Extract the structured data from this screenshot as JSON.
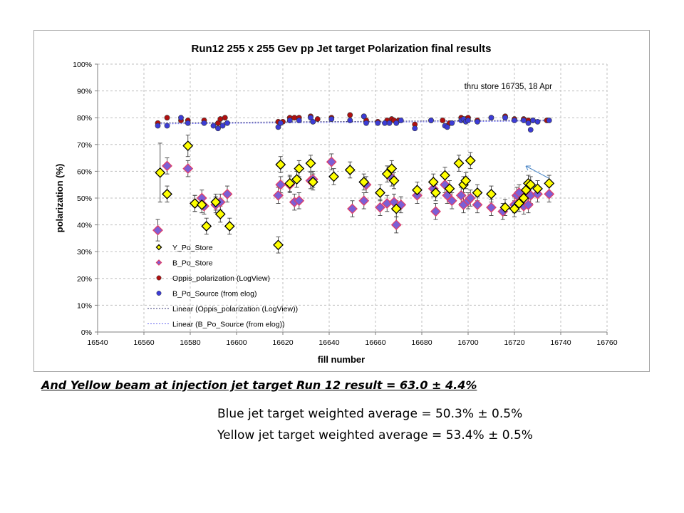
{
  "colors": {
    "yellow_marker": "#ffff00",
    "blue_marker": "#7b5fd6",
    "blue_marker_edge": "#e0406a",
    "oppis_marker": "#b01010",
    "source_marker": "#3c3cd6",
    "gridline": "#bfbfbf",
    "oppis_trend": "#3a3a7a",
    "source_trend": "#6a6af0",
    "annotation_arrow": "#4a86c6"
  },
  "chart_data": {
    "type": "scatter",
    "title": "Run12 255 x 255 Gev pp Jet target Polarization final results",
    "xlabel": "fill number",
    "ylabel": "polarization (%)",
    "xlim": [
      16540,
      16760
    ],
    "ylim": [
      0,
      100
    ],
    "x_ticks": [
      "16540",
      "16560",
      "16580",
      "16600",
      "16620",
      "16640",
      "16660",
      "16680",
      "16700",
      "16720",
      "16740",
      "16760"
    ],
    "y_ticks": [
      "0%",
      "10%",
      "20%",
      "30%",
      "40%",
      "50%",
      "60%",
      "70%",
      "80%",
      "90%",
      "100%"
    ],
    "grid": true,
    "annotation": "thru store 16735, 18 Apr",
    "legend_position": "bottom-left inside plot",
    "series": [
      {
        "name": "Y_Po_Store",
        "marker": "diamond",
        "points": [
          [
            16567,
            59.5,
            11
          ],
          [
            16570,
            51.5,
            3
          ],
          [
            16579,
            69.5,
            4
          ],
          [
            16582,
            48,
            3
          ],
          [
            16585,
            47.5,
            3
          ],
          [
            16587,
            39.5,
            3
          ],
          [
            16591,
            48.5,
            3
          ],
          [
            16593,
            44,
            3
          ],
          [
            16597,
            39.5,
            3
          ],
          [
            16618,
            32.5,
            3
          ],
          [
            16619,
            62.5,
            3
          ],
          [
            16623,
            55.5,
            3
          ],
          [
            16626,
            57,
            3
          ],
          [
            16627,
            61,
            3
          ],
          [
            16632,
            63,
            3
          ],
          [
            16633,
            56,
            3
          ],
          [
            16642,
            58,
            3
          ],
          [
            16649,
            60.5,
            3
          ],
          [
            16655,
            56,
            3
          ],
          [
            16662,
            52,
            3
          ],
          [
            16665,
            59,
            3
          ],
          [
            16667,
            61,
            3
          ],
          [
            16668,
            56.5,
            3
          ],
          [
            16669,
            46,
            3
          ],
          [
            16678,
            53,
            3
          ],
          [
            16685,
            56,
            3
          ],
          [
            16686,
            52,
            3
          ],
          [
            16690,
            58.5,
            3
          ],
          [
            16692,
            53.5,
            3
          ],
          [
            16696,
            63,
            3
          ],
          [
            16698,
            55,
            3
          ],
          [
            16699,
            56.5,
            3
          ],
          [
            16701,
            64,
            3
          ],
          [
            16704,
            52,
            3
          ],
          [
            16710,
            51.5,
            3
          ],
          [
            16716,
            46.5,
            3
          ],
          [
            16720,
            46,
            3
          ],
          [
            16722,
            48,
            3
          ],
          [
            16724,
            50,
            3
          ],
          [
            16725,
            53,
            3
          ],
          [
            16726,
            55.5,
            3
          ],
          [
            16727,
            55,
            3
          ],
          [
            16730,
            53.5,
            3
          ],
          [
            16735,
            55.5,
            3
          ]
        ]
      },
      {
        "name": "B_Po_Store",
        "marker": "diamond",
        "points": [
          [
            16566,
            38,
            4
          ],
          [
            16570,
            62,
            3
          ],
          [
            16579,
            61,
            3
          ],
          [
            16582,
            48,
            3
          ],
          [
            16585,
            50,
            3
          ],
          [
            16586,
            47,
            3
          ],
          [
            16591,
            47.5,
            3
          ],
          [
            16593,
            48.5,
            3
          ],
          [
            16596,
            51.5,
            3
          ],
          [
            16618,
            51,
            3
          ],
          [
            16619,
            55,
            3
          ],
          [
            16623,
            55,
            3
          ],
          [
            16625,
            48.5,
            3
          ],
          [
            16627,
            49,
            3
          ],
          [
            16632,
            56.5,
            3
          ],
          [
            16633,
            57,
            3
          ],
          [
            16641,
            63.5,
            3
          ],
          [
            16650,
            46,
            3
          ],
          [
            16655,
            49,
            3
          ],
          [
            16656,
            55,
            3
          ],
          [
            16662,
            46.5,
            3
          ],
          [
            16665,
            48,
            3
          ],
          [
            16667,
            57.5,
            3
          ],
          [
            16668,
            48.5,
            3
          ],
          [
            16669,
            40,
            3
          ],
          [
            16671,
            47.5,
            3
          ],
          [
            16678,
            51,
            3
          ],
          [
            16685,
            53.5,
            3
          ],
          [
            16686,
            45,
            3
          ],
          [
            16690,
            55,
            3
          ],
          [
            16691,
            51,
            3
          ],
          [
            16693,
            49,
            3
          ],
          [
            16697,
            51,
            3
          ],
          [
            16698,
            47.5,
            3
          ],
          [
            16700,
            49,
            3
          ],
          [
            16701,
            50,
            3
          ],
          [
            16704,
            47.5,
            3
          ],
          [
            16710,
            46.5,
            3
          ],
          [
            16715,
            45,
            3
          ],
          [
            16720,
            47.5,
            3
          ],
          [
            16721,
            51,
            3
          ],
          [
            16722,
            52,
            3
          ],
          [
            16724,
            47,
            3
          ],
          [
            16726,
            47.5,
            3
          ],
          [
            16727,
            51,
            3
          ],
          [
            16730,
            51.5,
            3
          ],
          [
            16735,
            51.5,
            3
          ]
        ]
      },
      {
        "name": "Oppis_polarization (LogView)",
        "marker": "circle",
        "points": [
          [
            16566,
            78
          ],
          [
            16570,
            80
          ],
          [
            16576,
            79
          ],
          [
            16579,
            79
          ],
          [
            16586,
            79
          ],
          [
            16592,
            78
          ],
          [
            16593,
            79.5
          ],
          [
            16595,
            80
          ],
          [
            16618,
            78.5
          ],
          [
            16620,
            78.5
          ],
          [
            16623,
            80
          ],
          [
            16625,
            80
          ],
          [
            16627,
            80
          ],
          [
            16632,
            80.5
          ],
          [
            16635,
            79.5
          ],
          [
            16641,
            80
          ],
          [
            16649,
            81
          ],
          [
            16655,
            80.5
          ],
          [
            16656,
            79
          ],
          [
            16661,
            78.5
          ],
          [
            16665,
            79
          ],
          [
            16667,
            79.5
          ],
          [
            16668,
            79
          ],
          [
            16670,
            79
          ],
          [
            16677,
            77.5
          ],
          [
            16684,
            79
          ],
          [
            16689,
            79
          ],
          [
            16691,
            77
          ],
          [
            16692,
            78
          ],
          [
            16697,
            80
          ],
          [
            16699,
            79.5
          ],
          [
            16700,
            80
          ],
          [
            16704,
            79
          ],
          [
            16710,
            80
          ],
          [
            16716,
            80.5
          ],
          [
            16720,
            79.5
          ],
          [
            16724,
            79.5
          ],
          [
            16726,
            79
          ],
          [
            16728,
            79
          ],
          [
            16734,
            79
          ]
        ]
      },
      {
        "name": "B_Po_Source (from elog)",
        "marker": "circle",
        "points": [
          [
            16566,
            77
          ],
          [
            16570,
            77
          ],
          [
            16576,
            80
          ],
          [
            16579,
            78
          ],
          [
            16586,
            78
          ],
          [
            16590,
            77
          ],
          [
            16592,
            76
          ],
          [
            16594,
            77
          ],
          [
            16596,
            78
          ],
          [
            16618,
            76.5
          ],
          [
            16619,
            78
          ],
          [
            16623,
            79
          ],
          [
            16627,
            79
          ],
          [
            16632,
            80
          ],
          [
            16633,
            78.5
          ],
          [
            16641,
            79.5
          ],
          [
            16649,
            79
          ],
          [
            16655,
            80.5
          ],
          [
            16656,
            78
          ],
          [
            16661,
            78
          ],
          [
            16664,
            78
          ],
          [
            16666,
            78
          ],
          [
            16669,
            78
          ],
          [
            16671,
            79
          ],
          [
            16677,
            76
          ],
          [
            16684,
            79
          ],
          [
            16690,
            77
          ],
          [
            16691,
            76.5
          ],
          [
            16693,
            78
          ],
          [
            16697,
            79
          ],
          [
            16698,
            79.5
          ],
          [
            16699,
            78.5
          ],
          [
            16700,
            79
          ],
          [
            16704,
            78.5
          ],
          [
            16710,
            80
          ],
          [
            16716,
            80
          ],
          [
            16720,
            79
          ],
          [
            16724,
            79
          ],
          [
            16726,
            78
          ],
          [
            16727,
            75.5
          ],
          [
            16728,
            79
          ],
          [
            16730,
            78.5
          ],
          [
            16735,
            79
          ]
        ]
      },
      {
        "name": "Linear (Oppis_polarization (LogView))",
        "type": "line",
        "x": [
          16566,
          16735
        ],
        "y": [
          78.1,
          79.1
        ]
      },
      {
        "name": "Linear (B_Po_Source (from elog))",
        "type": "line",
        "x": [
          16566,
          16735
        ],
        "y": [
          77.7,
          78.8
        ]
      }
    ]
  },
  "footer": {
    "injection_note": "And Yellow beam at injection jet target Run 12 result = 63.0 ±  4.4%",
    "blue_avg": "Blue jet target weighted average    =  50.3% ± 0.5%",
    "yellow_avg": "Yellow jet target weighted average =  53.4% ± 0.5%"
  }
}
